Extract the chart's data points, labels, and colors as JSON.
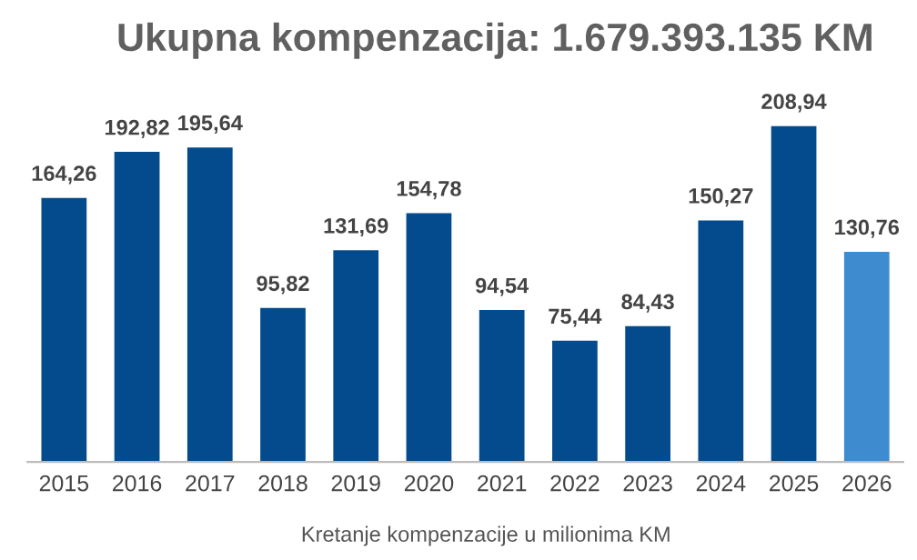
{
  "chart_data": {
    "type": "bar",
    "title": "Ukupna kompenzacija: 1.679.393.135 KM",
    "xlabel": "Kretanje kompenzacije u milionima KM",
    "categories": [
      "2015",
      "2016",
      "2017",
      "2018",
      "2019",
      "2020",
      "2021",
      "2022",
      "2023",
      "2024",
      "2025",
      "2026"
    ],
    "values": [
      164.26,
      192.82,
      195.64,
      95.82,
      131.69,
      154.78,
      94.54,
      75.44,
      84.43,
      150.27,
      208.94,
      130.76
    ],
    "colors": [
      "#034b8c",
      "#034b8c",
      "#034b8c",
      "#034b8c",
      "#034b8c",
      "#034b8c",
      "#034b8c",
      "#034b8c",
      "#034b8c",
      "#034b8c",
      "#034b8c",
      "#3f8bd0"
    ],
    "value_labels": [
      "164,26",
      "192,82",
      "195,64",
      "95,82",
      "131,69",
      "154,78",
      "94,54",
      "75,44",
      "84,43",
      "150,27",
      "208,94",
      "130,76"
    ],
    "grid": false,
    "legend": false
  }
}
